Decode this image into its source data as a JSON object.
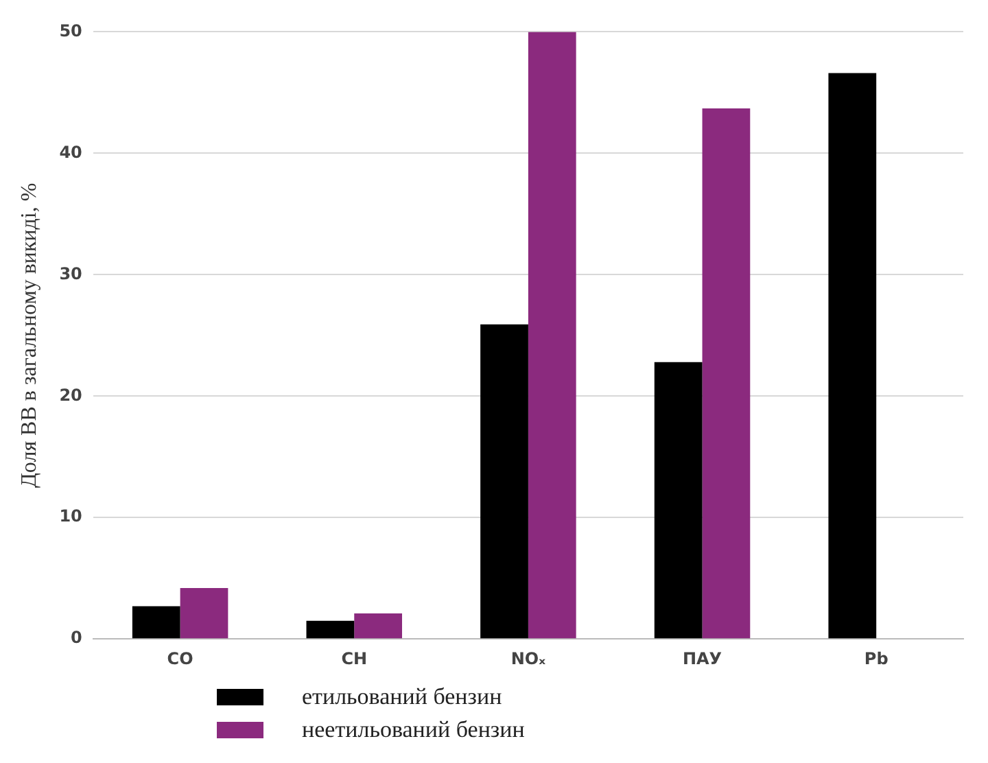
{
  "chart_data": {
    "type": "bar",
    "ylabel": "Доля ВВ в загальному викиді, %",
    "categories": [
      "CO",
      "CH",
      "NOₓ",
      "ПАУ",
      "Pb"
    ],
    "series": [
      {
        "name": "етильований бензин",
        "color": "#000000",
        "values": [
          2.7,
          1.5,
          25.9,
          22.8,
          46.6
        ]
      },
      {
        "name": "неетильований бензин",
        "color": "#8b2a7e",
        "values": [
          4.2,
          2.1,
          50,
          43.7,
          null
        ]
      }
    ],
    "ylim": [
      0,
      50
    ],
    "yticks": [
      0,
      10,
      20,
      30,
      40,
      50
    ],
    "grid": "y",
    "legend": "bottom left"
  }
}
